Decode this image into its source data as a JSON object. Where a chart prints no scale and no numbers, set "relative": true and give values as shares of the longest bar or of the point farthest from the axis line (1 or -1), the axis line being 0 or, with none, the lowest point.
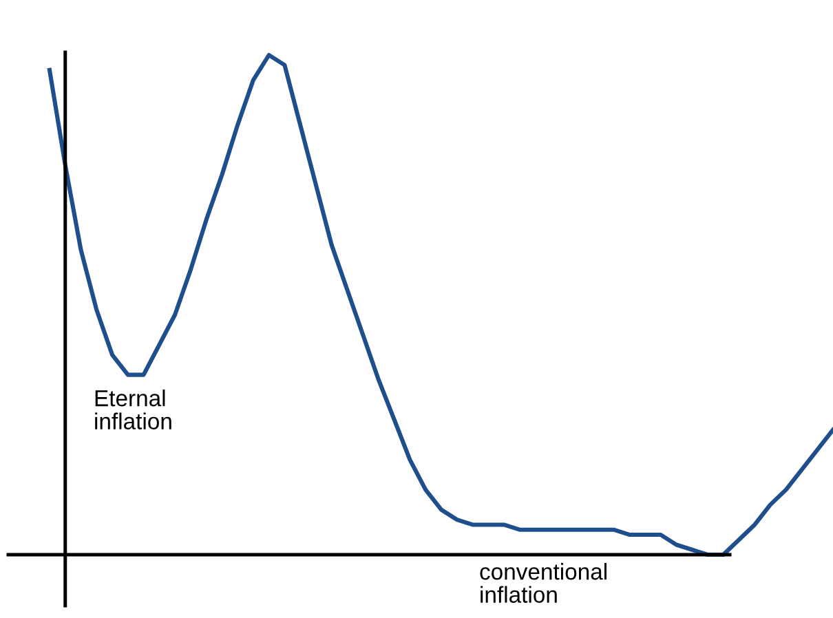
{
  "chart_data": {
    "type": "line",
    "relative": true,
    "color": "#1f4e8c",
    "marker": "none",
    "line_style": "solid",
    "categories": [
      null,
      null,
      null,
      null,
      null,
      null,
      null,
      null,
      null,
      null,
      null,
      null,
      null,
      null,
      null,
      null,
      null,
      null,
      null,
      null,
      null,
      null,
      null,
      null,
      null,
      null,
      null,
      null,
      null,
      null,
      null,
      null,
      null,
      null,
      null,
      null,
      null,
      null,
      null,
      null,
      null,
      null,
      null,
      null,
      null,
      null,
      null,
      null,
      null,
      null,
      null
    ],
    "values": [
      0.97,
      0.78,
      0.61,
      0.49,
      0.4,
      0.36,
      0.36,
      0.42,
      0.48,
      0.57,
      0.67,
      0.76,
      0.86,
      0.95,
      1,
      0.98,
      0.86,
      0.74,
      0.62,
      0.53,
      0.44,
      0.35,
      0.27,
      0.19,
      0.13,
      0.09,
      0.07,
      0.06,
      0.06,
      0.06,
      0.05,
      0.05,
      0.05,
      0.05,
      0.05,
      0.05,
      0.05,
      0.04,
      0.04,
      0.04,
      0.02,
      0.01,
      0,
      0,
      0.03,
      0.06,
      0.1,
      0.13,
      0.17,
      0.21,
      0.25
    ],
    "annotations": [
      "Eternal\ninflation",
      "conventional\ninflation"
    ]
  }
}
